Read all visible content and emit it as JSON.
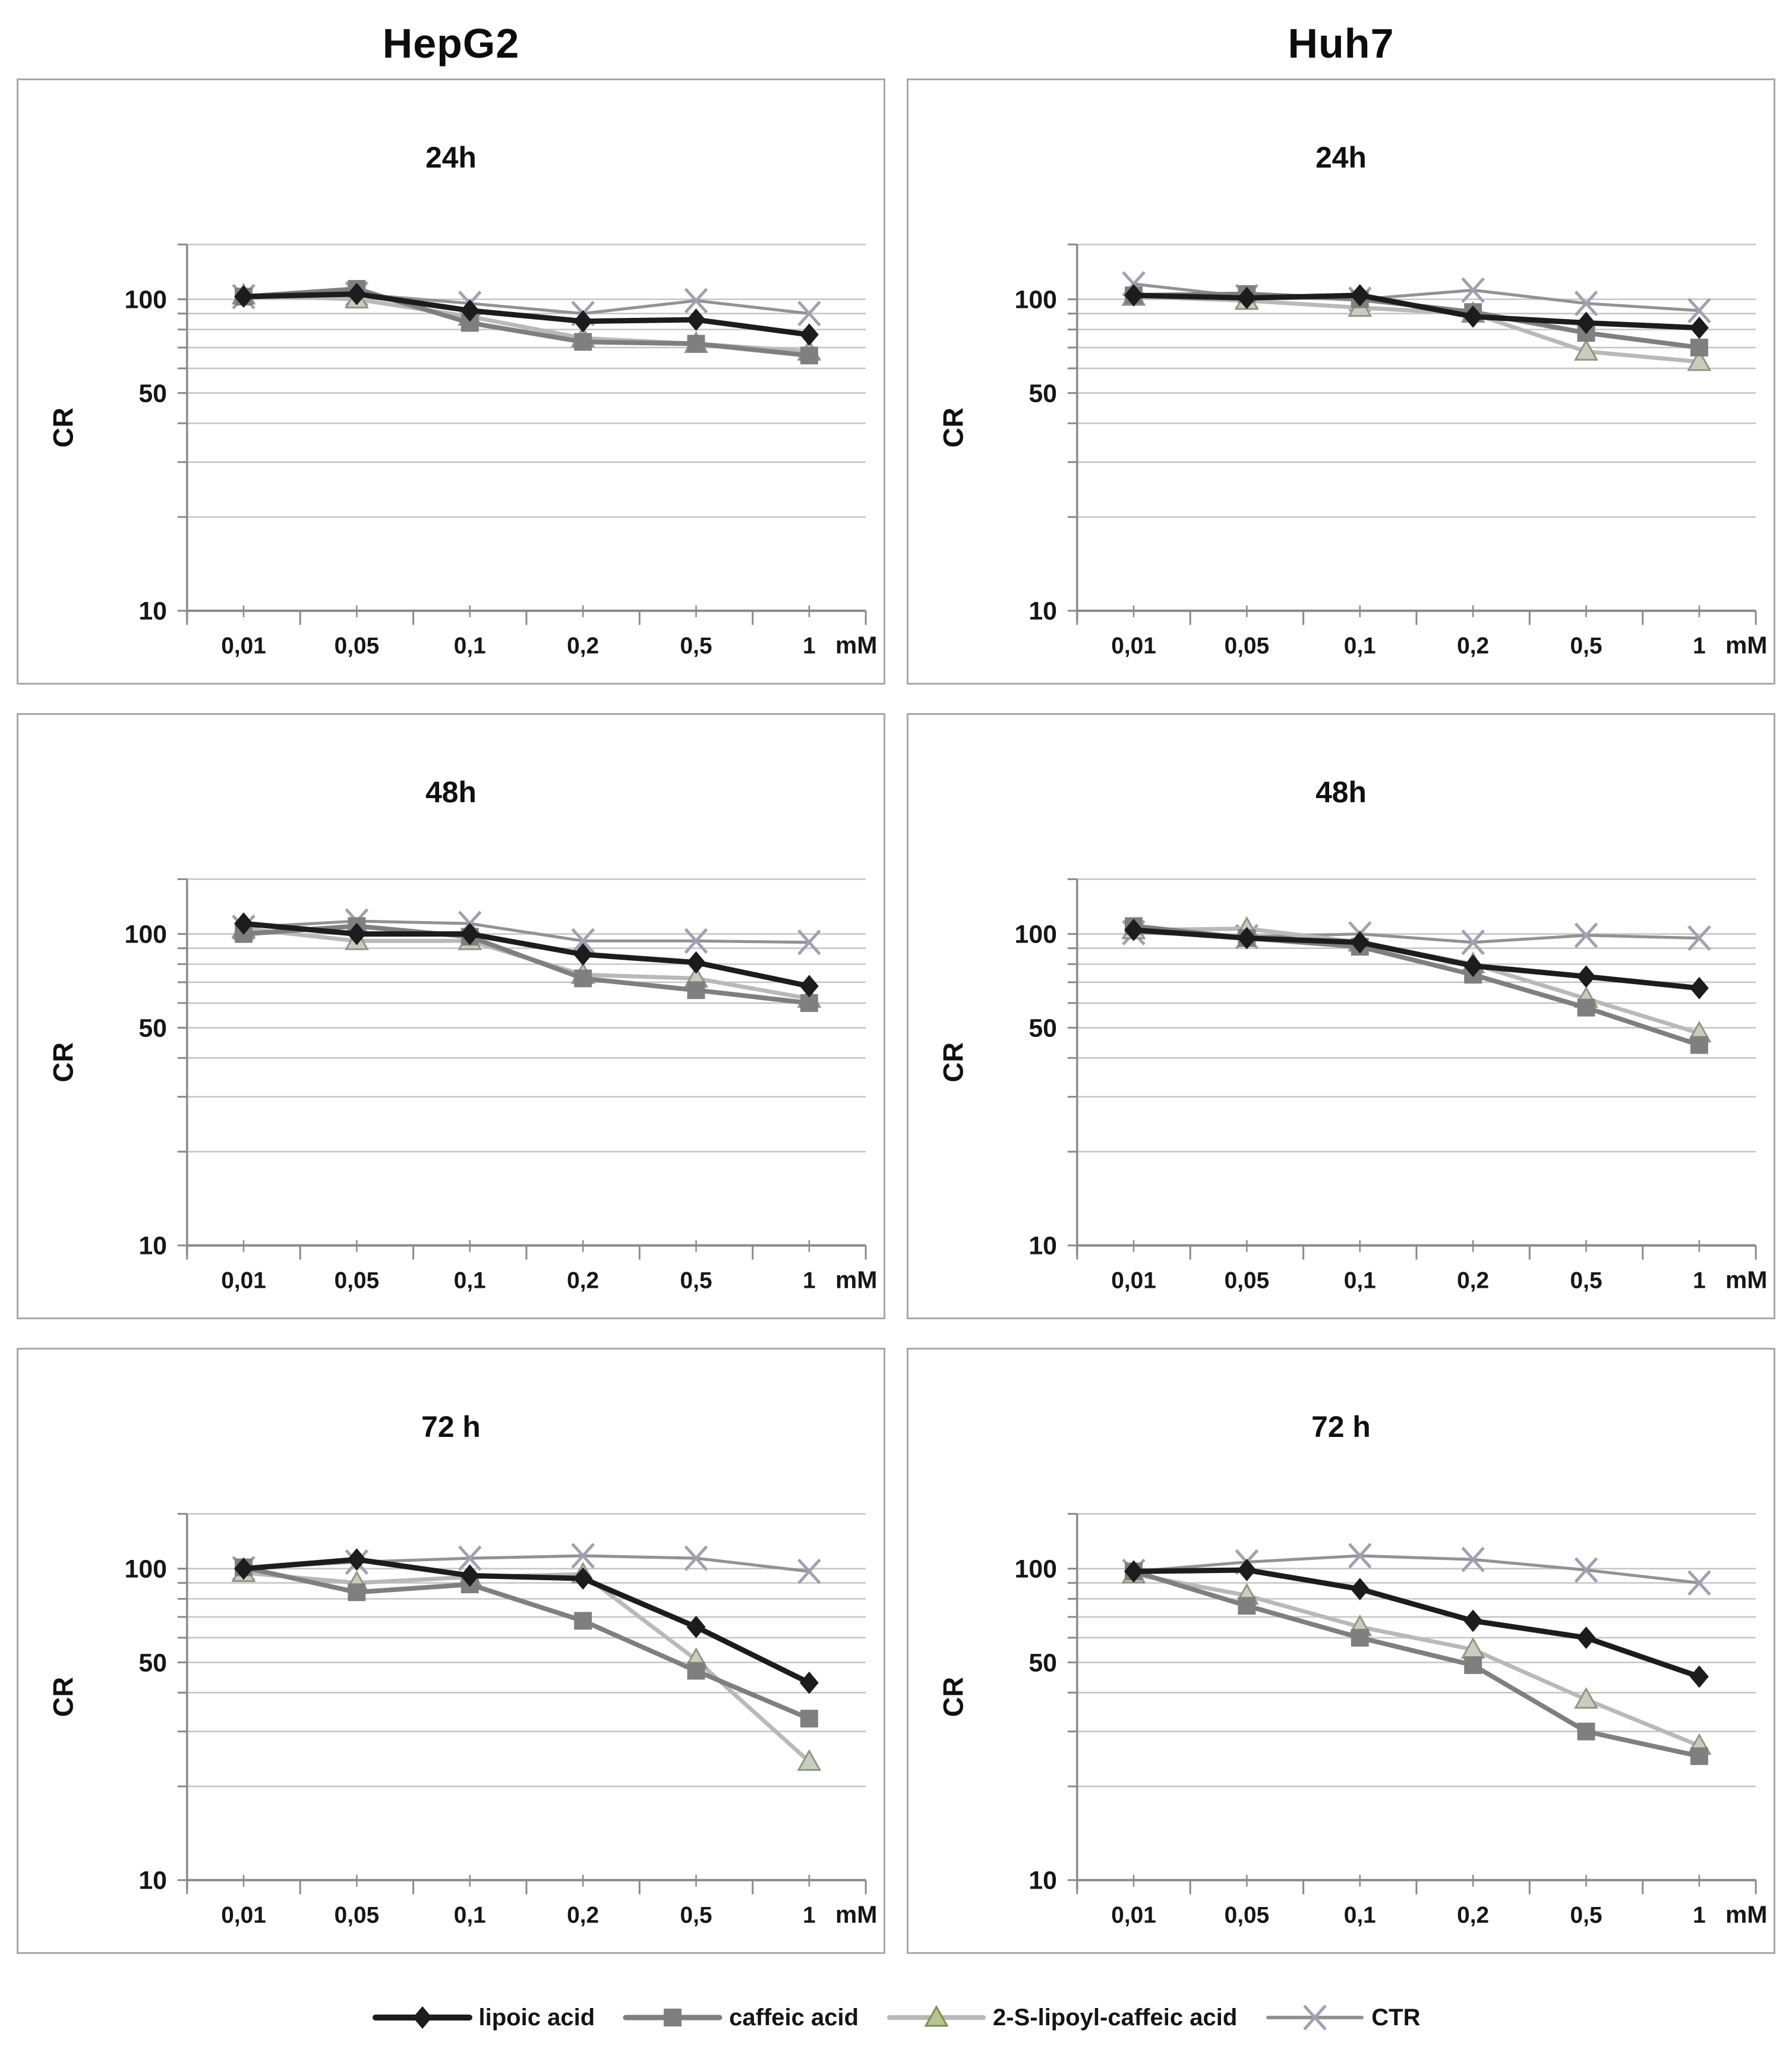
{
  "figure": {
    "column_headers": [
      "HepG2",
      "Huh7"
    ],
    "legend": [
      {
        "label": "lipoic acid",
        "marker": "diamond",
        "line_color": "#1c1c1c",
        "marker_fill": "#1c1c1c",
        "marker_stroke": "#1c1c1c",
        "line_width": 9
      },
      {
        "label": "caffeic acid",
        "marker": "square",
        "line_color": "#7f7f7f",
        "marker_fill": "#7f7f7f",
        "marker_stroke": "#6e6e6e",
        "line_width": 8
      },
      {
        "label": "2-S-lipoyl-caffeic acid",
        "marker": "triangle",
        "line_color": "#b9b9b9",
        "marker_fill": "#c9cdbf",
        "marker_stroke": "#8f9683",
        "line_width": 7,
        "legend_marker_fill": "#b7c48e",
        "legend_marker_stroke": "#7f8c57"
      },
      {
        "label": "CTR",
        "marker": "x",
        "line_color": "#929292",
        "marker_fill": "#a49eb0",
        "marker_stroke": "#a49eb0",
        "line_width": 5
      }
    ],
    "colors": {
      "gridline": "#c4c4c4",
      "axis": "#8a8a8a",
      "panel_border": "#a8a8a8",
      "text": "#111111"
    }
  },
  "chart_data": [
    {
      "type": "line",
      "cell_line": "HepG2",
      "title": "24h",
      "ylabel": "CR",
      "x_unit": "mM",
      "y_scale": "log",
      "ylim": [
        10,
        150
      ],
      "grid": true,
      "legend_position": "bottom-shared",
      "y_ticks": [
        {
          "value": 100,
          "label": "100"
        },
        {
          "value": 50,
          "label": "50"
        },
        {
          "value": 10,
          "label": "10"
        }
      ],
      "y_gridlines": [
        20,
        30,
        40,
        50,
        60,
        70,
        80,
        90,
        100
      ],
      "categories": [
        "0,01",
        "0,05",
        "0,1",
        "0,2",
        "0,5",
        "1"
      ],
      "series": [
        {
          "name": "lipoic acid",
          "values": [
            102,
            104,
            92,
            85,
            86,
            77
          ]
        },
        {
          "name": "caffeic acid",
          "values": [
            102,
            108,
            84,
            73,
            72,
            66
          ]
        },
        {
          "name": "2-S-lipoyl-caffeic acid",
          "values": [
            103,
            100,
            88,
            75,
            72,
            68
          ]
        },
        {
          "name": "CTR",
          "values": [
            102,
            104,
            97,
            90,
            99,
            90
          ]
        }
      ]
    },
    {
      "type": "line",
      "cell_line": "Huh7",
      "title": "24h",
      "ylabel": "CR",
      "x_unit": "mM",
      "y_scale": "log",
      "ylim": [
        10,
        150
      ],
      "grid": true,
      "legend_position": "bottom-shared",
      "y_ticks": [
        {
          "value": 100,
          "label": "100"
        },
        {
          "value": 50,
          "label": "50"
        },
        {
          "value": 10,
          "label": "10"
        }
      ],
      "y_gridlines": [
        20,
        30,
        40,
        50,
        60,
        70,
        80,
        90,
        100
      ],
      "categories": [
        "0,01",
        "0,05",
        "0,1",
        "0,2",
        "0,5",
        "1"
      ],
      "series": [
        {
          "name": "lipoic acid",
          "values": [
            103,
            101,
            103,
            88,
            84,
            81
          ]
        },
        {
          "name": "caffeic acid",
          "values": [
            103,
            104,
            100,
            91,
            78,
            70
          ]
        },
        {
          "name": "2-S-lipoyl-caffeic acid",
          "values": [
            102,
            99,
            94,
            90,
            68,
            63
          ]
        },
        {
          "name": "CTR",
          "values": [
            112,
            102,
            100,
            107,
            97,
            92
          ]
        }
      ]
    },
    {
      "type": "line",
      "cell_line": "HepG2",
      "title": "48h",
      "ylabel": "CR",
      "x_unit": "mM",
      "y_scale": "log",
      "ylim": [
        10,
        150
      ],
      "grid": true,
      "legend_position": "bottom-shared",
      "y_ticks": [
        {
          "value": 100,
          "label": "100"
        },
        {
          "value": 50,
          "label": "50"
        },
        {
          "value": 10,
          "label": "10"
        }
      ],
      "y_gridlines": [
        20,
        30,
        40,
        50,
        60,
        70,
        80,
        90,
        100
      ],
      "categories": [
        "0,01",
        "0,05",
        "0,1",
        "0,2",
        "0,5",
        "1"
      ],
      "series": [
        {
          "name": "lipoic acid",
          "values": [
            108,
            100,
            100,
            86,
            81,
            68
          ]
        },
        {
          "name": "caffeic acid",
          "values": [
            100,
            106,
            98,
            72,
            66,
            60
          ]
        },
        {
          "name": "2-S-lipoyl-caffeic acid",
          "values": [
            104,
            95,
            95,
            74,
            72,
            62
          ]
        },
        {
          "name": "CTR",
          "values": [
            105,
            110,
            108,
            95,
            95,
            94
          ]
        }
      ]
    },
    {
      "type": "line",
      "cell_line": "Huh7",
      "title": "48h",
      "ylabel": "CR",
      "x_unit": "mM",
      "y_scale": "log",
      "ylim": [
        10,
        150
      ],
      "grid": true,
      "legend_position": "bottom-shared",
      "y_ticks": [
        {
          "value": 100,
          "label": "100"
        },
        {
          "value": 50,
          "label": "50"
        },
        {
          "value": 10,
          "label": "10"
        }
      ],
      "y_gridlines": [
        20,
        30,
        40,
        50,
        60,
        70,
        80,
        90,
        100
      ],
      "categories": [
        "0,01",
        "0,05",
        "0,1",
        "0,2",
        "0,5",
        "1"
      ],
      "series": [
        {
          "name": "lipoic acid",
          "values": [
            103,
            97,
            94,
            79,
            73,
            67
          ]
        },
        {
          "name": "caffeic acid",
          "values": [
            106,
            97,
            91,
            74,
            58,
            44
          ]
        },
        {
          "name": "2-S-lipoyl-caffeic acid",
          "values": [
            103,
            104,
            94,
            80,
            62,
            48
          ]
        },
        {
          "name": "CTR",
          "values": [
            101,
            98,
            100,
            94,
            99,
            97
          ]
        }
      ]
    },
    {
      "type": "line",
      "cell_line": "HepG2",
      "title": "72 h",
      "ylabel": "CR",
      "x_unit": "mM",
      "y_scale": "log",
      "ylim": [
        10,
        150
      ],
      "grid": true,
      "legend_position": "bottom-shared",
      "y_ticks": [
        {
          "value": 100,
          "label": "100"
        },
        {
          "value": 50,
          "label": "50"
        },
        {
          "value": 10,
          "label": "10"
        }
      ],
      "y_gridlines": [
        20,
        30,
        40,
        50,
        60,
        70,
        80,
        90,
        100
      ],
      "categories": [
        "0,01",
        "0,05",
        "0,1",
        "0,2",
        "0,5",
        "1"
      ],
      "series": [
        {
          "name": "lipoic acid",
          "values": [
            100,
            107,
            95,
            93,
            65,
            43
          ]
        },
        {
          "name": "caffeic acid",
          "values": [
            101,
            84,
            89,
            68,
            47,
            33
          ]
        },
        {
          "name": "2-S-lipoyl-caffeic acid",
          "values": [
            97,
            90,
            94,
            96,
            51,
            24
          ]
        },
        {
          "name": "CTR",
          "values": [
            100,
            105,
            108,
            110,
            108,
            98
          ]
        }
      ]
    },
    {
      "type": "line",
      "cell_line": "Huh7",
      "title": "72 h",
      "ylabel": "CR",
      "x_unit": "mM",
      "y_scale": "log",
      "ylim": [
        10,
        150
      ],
      "grid": true,
      "legend_position": "bottom-shared",
      "y_ticks": [
        {
          "value": 100,
          "label": "100"
        },
        {
          "value": 50,
          "label": "50"
        },
        {
          "value": 10,
          "label": "10"
        }
      ],
      "y_gridlines": [
        20,
        30,
        40,
        50,
        60,
        70,
        80,
        90,
        100
      ],
      "categories": [
        "0,01",
        "0,05",
        "0,1",
        "0,2",
        "0,5",
        "1"
      ],
      "series": [
        {
          "name": "lipoic acid",
          "values": [
            98,
            99,
            86,
            68,
            60,
            45
          ]
        },
        {
          "name": "caffeic acid",
          "values": [
            98,
            76,
            60,
            49,
            30,
            25
          ]
        },
        {
          "name": "2-S-lipoyl-caffeic acid",
          "values": [
            96,
            82,
            65,
            55,
            38,
            27
          ]
        },
        {
          "name": "CTR",
          "values": [
            98,
            105,
            110,
            107,
            99,
            90
          ]
        }
      ]
    }
  ]
}
